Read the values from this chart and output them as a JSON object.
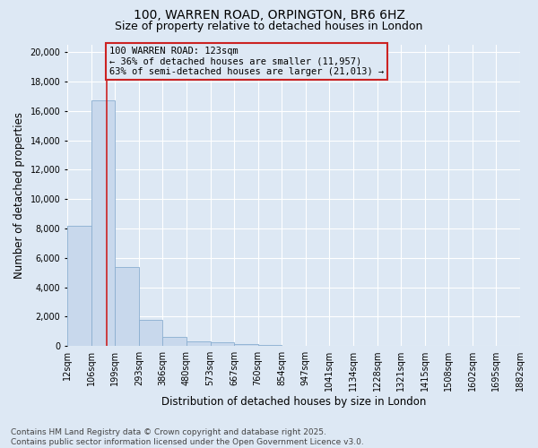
{
  "title_line1": "100, WARREN ROAD, ORPINGTON, BR6 6HZ",
  "title_line2": "Size of property relative to detached houses in London",
  "xlabel": "Distribution of detached houses by size in London",
  "ylabel": "Number of detached properties",
  "bar_values": [
    8200,
    16700,
    5400,
    1800,
    600,
    320,
    230,
    130,
    80,
    0,
    0,
    0,
    0,
    0,
    0,
    0,
    0,
    0,
    0
  ],
  "bin_labels": [
    "12sqm",
    "106sqm",
    "199sqm",
    "293sqm",
    "386sqm",
    "480sqm",
    "573sqm",
    "667sqm",
    "760sqm",
    "854sqm",
    "947sqm",
    "1041sqm",
    "1134sqm",
    "1228sqm",
    "1321sqm",
    "1415sqm",
    "1508sqm",
    "1602sqm",
    "1695sqm",
    "1882sqm"
  ],
  "bar_color": "#c8d8ec",
  "bar_edge_color": "#8aaed0",
  "vline_color": "#cc2222",
  "vline_position": 1.17,
  "annotation_text": "100 WARREN ROAD: 123sqm\n← 36% of detached houses are smaller (11,957)\n63% of semi-detached houses are larger (21,013) →",
  "annotation_box_color": "#cc2222",
  "annotation_bg_color": "#dde8f4",
  "ylim": [
    0,
    20500
  ],
  "yticks": [
    0,
    2000,
    4000,
    6000,
    8000,
    10000,
    12000,
    14000,
    16000,
    18000,
    20000
  ],
  "background_color": "#dde8f4",
  "grid_color": "#ffffff",
  "footnote": "Contains HM Land Registry data © Crown copyright and database right 2025.\nContains public sector information licensed under the Open Government Licence v3.0.",
  "title_fontsize": 10,
  "subtitle_fontsize": 9,
  "label_fontsize": 8.5,
  "tick_fontsize": 7,
  "annot_fontsize": 7.5,
  "footnote_fontsize": 6.5
}
